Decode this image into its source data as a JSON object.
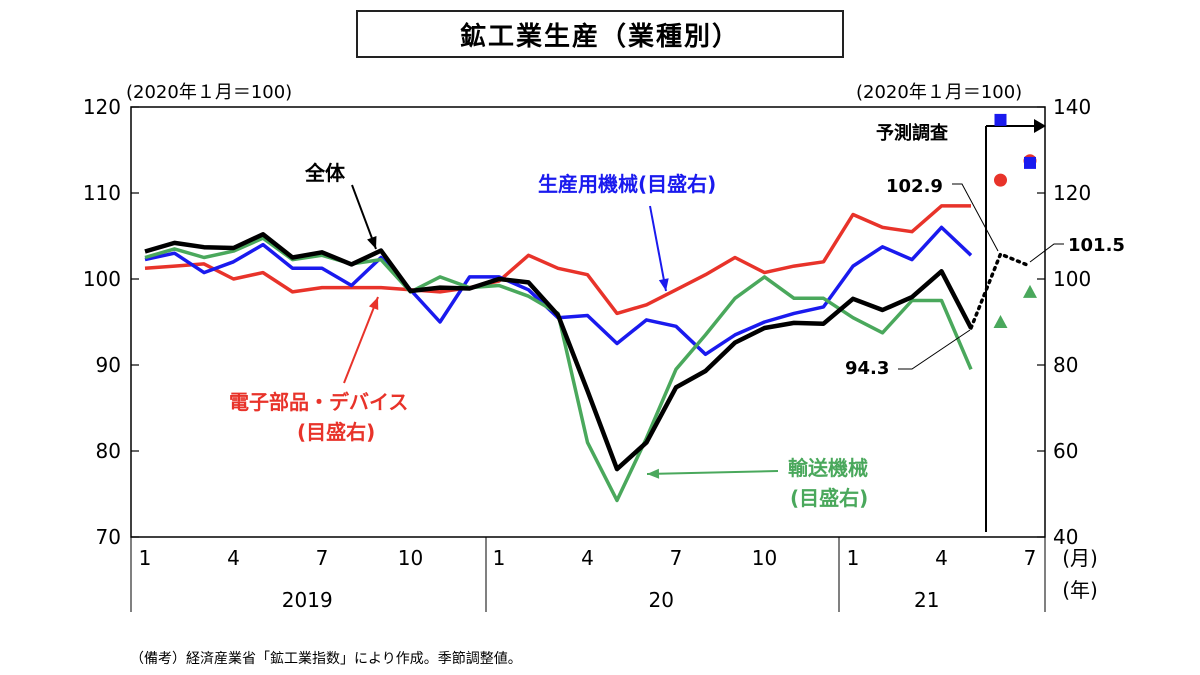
{
  "title": "鉱工業生産（業種別）",
  "unit_left": "(2020年１月＝100)",
  "unit_right": "(2020年１月＝100)",
  "footnote": "（備考）経済産業省「鉱工業指数」により作成。季節調整値。",
  "colors": {
    "total": "#000000",
    "production_machinery": "#1a1aee",
    "electronic_parts": "#e8332a",
    "transport": "#4aa85c"
  },
  "chart_data": {
    "type": "line",
    "title": "鉱工業生産（業種別）",
    "left_axis": {
      "ylim": [
        70,
        120
      ],
      "ticks": [
        70,
        80,
        90,
        100,
        110,
        120
      ]
    },
    "right_axis": {
      "ylim": [
        40,
        140
      ],
      "ticks": [
        40,
        60,
        80,
        100,
        120,
        140
      ]
    },
    "x_tick_labels": [
      "1",
      "4",
      "7",
      "10",
      "1",
      "4",
      "7",
      "10",
      "1",
      "4",
      "7"
    ],
    "x_tick_months": [
      0,
      3,
      6,
      9,
      12,
      15,
      18,
      21,
      24,
      27,
      30
    ],
    "year_labels": [
      {
        "label": "2019",
        "center": 5.5
      },
      {
        "label": "20",
        "center": 17.5
      },
      {
        "label": "21",
        "center": 26.5
      }
    ],
    "month_unit_label": "(月)",
    "year_unit_label": "(年)",
    "series": [
      {
        "name": "全体",
        "key": "total",
        "axis": "left",
        "values": [
          103.2,
          104.2,
          103.7,
          103.6,
          105.2,
          102.5,
          103.1,
          101.7,
          103.3,
          98.6,
          99.0,
          98.9,
          100.0,
          99.6,
          95.8,
          87.0,
          77.9,
          81.0,
          87.4,
          89.3,
          92.6,
          94.3,
          94.9,
          94.8,
          97.7,
          96.4,
          97.9,
          100.9,
          94.3
        ],
        "forecast": [
          {
            "m": 29,
            "value": 102.9
          },
          {
            "m": 30,
            "value": 101.5
          }
        ]
      },
      {
        "name": "生産用機械(目盛右)",
        "key": "production_machinery",
        "axis": "right",
        "values": [
          104.5,
          106.0,
          101.5,
          104.0,
          108.0,
          102.5,
          102.5,
          98.5,
          105.0,
          97.5,
          90.0,
          100.5,
          100.5,
          97.5,
          91.0,
          91.5,
          85.0,
          90.5,
          89.0,
          82.5,
          87.0,
          90.0,
          92.0,
          93.5,
          103.0,
          107.5,
          104.5,
          112.0,
          105.5
        ],
        "forecast_markers": [
          {
            "m": 29,
            "value": 137.0
          },
          {
            "m": 30,
            "value": 127.0
          }
        ]
      },
      {
        "name": "電子部品・デバイス(目盛右)",
        "key": "electronic_parts",
        "axis": "right",
        "values": [
          102.5,
          103.0,
          103.5,
          100.0,
          101.5,
          97.0,
          98.0,
          98.0,
          98.0,
          97.5,
          97.0,
          98.0,
          99.5,
          105.5,
          102.5,
          101.0,
          92.0,
          94.0,
          97.5,
          101.0,
          105.0,
          101.5,
          103.0,
          104.0,
          115.0,
          112.0,
          111.0,
          117.0,
          117.0
        ],
        "forecast_markers": [
          {
            "m": 29,
            "value": 123.0
          },
          {
            "m": 30,
            "value": 127.5
          }
        ]
      },
      {
        "name": "輸送機械(目盛右)",
        "key": "transport",
        "axis": "right",
        "values": [
          105.0,
          107.0,
          105.0,
          106.5,
          109.5,
          104.5,
          105.5,
          103.5,
          104.5,
          97.0,
          100.5,
          98.0,
          98.5,
          96.0,
          92.0,
          62.0,
          48.5,
          63.0,
          79.0,
          87.0,
          95.5,
          100.5,
          95.5,
          95.5,
          91.0,
          87.5,
          95.0,
          95.0,
          79.0
        ],
        "forecast_markers": [
          {
            "m": 29,
            "value": 90.0
          },
          {
            "m": 30,
            "value": 97.0
          }
        ]
      }
    ],
    "annotations": {
      "total": "全体",
      "production_machinery": "生産用機械(目盛右)",
      "electronic_parts_line1": "電子部品・デバイス",
      "electronic_parts_line2": "(目盛右)",
      "transport_line1": "輸送機械",
      "transport_line2": "(目盛右)",
      "forecast_label": "予測調査",
      "value_latest": "94.3",
      "value_f1": "102.9",
      "value_f2": "101.5"
    }
  }
}
